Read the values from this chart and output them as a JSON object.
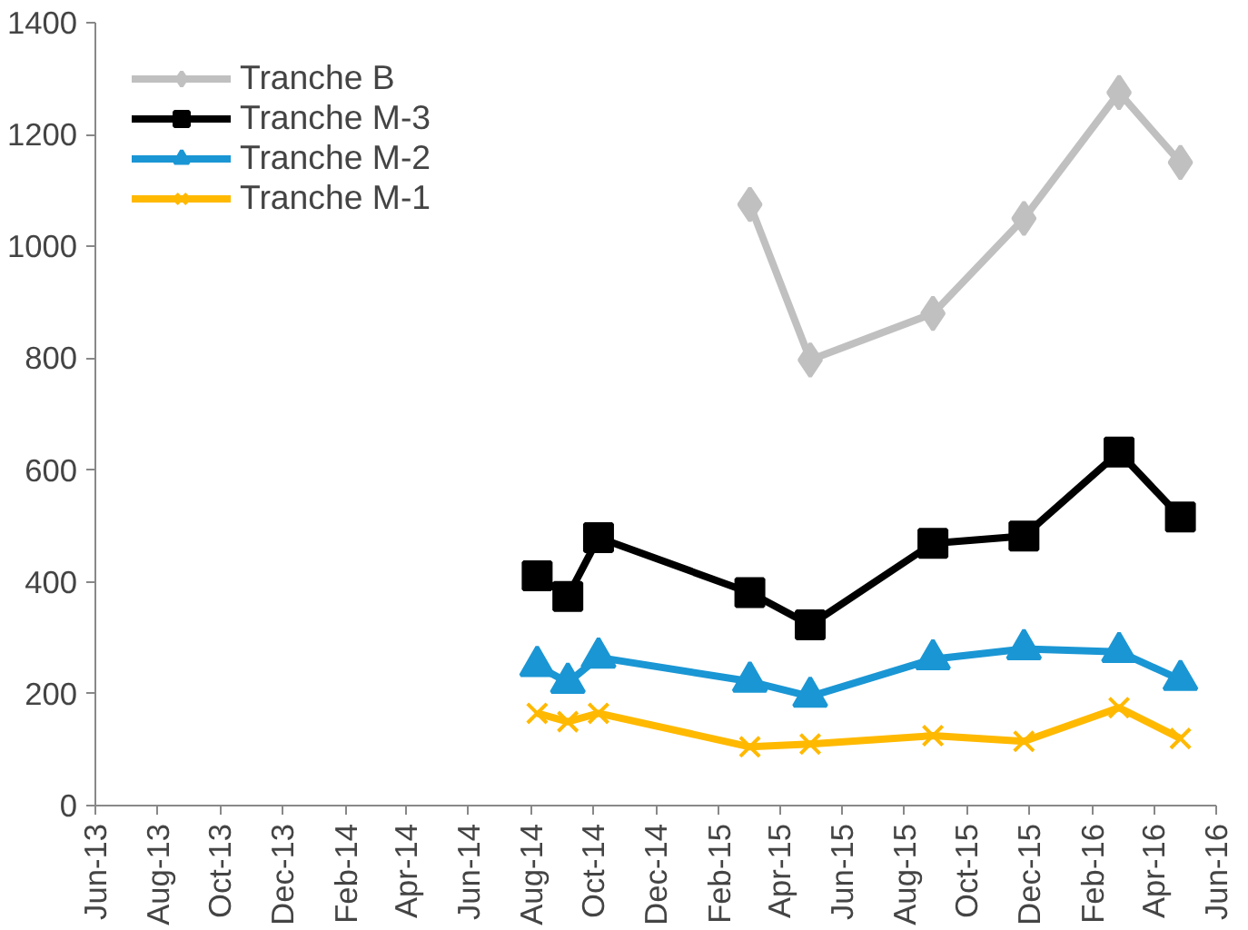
{
  "chart_data": {
    "type": "line",
    "x": [
      "2014-08-07",
      "2014-09-06",
      "2014-10-06",
      "2015-03-03",
      "2015-05-01",
      "2015-08-29",
      "2015-11-26",
      "2016-02-27",
      "2016-04-27"
    ],
    "series": [
      {
        "name": "Tranche B",
        "color": "#c0c0c0",
        "marker": "diamond",
        "values": [
          null,
          null,
          null,
          1075,
          797,
          880,
          1050,
          1275,
          1150
        ]
      },
      {
        "name": "Tranche M-3",
        "color": "#000000",
        "marker": "square",
        "values": [
          411,
          374,
          479,
          381,
          323,
          469,
          482,
          632,
          516
        ]
      },
      {
        "name": "Tranche M-2",
        "color": "#1a96d4",
        "marker": "triangle",
        "values": [
          250,
          220,
          265,
          222,
          195,
          262,
          280,
          275,
          225
        ]
      },
      {
        "name": "Tranche M-1",
        "color": "#ffb900",
        "marker": "cross",
        "values": [
          165,
          150,
          165,
          105,
          110,
          125,
          115,
          175,
          120
        ]
      }
    ],
    "ylim": [
      0,
      1400
    ],
    "yticks": [
      0,
      200,
      400,
      600,
      800,
      1000,
      1200,
      1400
    ],
    "xlim": [
      "2013-06",
      "2016-06"
    ],
    "xticks": [
      {
        "value": "2013-06",
        "label": "Jun-13"
      },
      {
        "value": "2013-08",
        "label": "Aug-13"
      },
      {
        "value": "2013-10",
        "label": "Oct-13"
      },
      {
        "value": "2013-12",
        "label": "Dec-13"
      },
      {
        "value": "2014-02",
        "label": "Feb-14"
      },
      {
        "value": "2014-04",
        "label": "Apr-14"
      },
      {
        "value": "2014-06",
        "label": "Jun-14"
      },
      {
        "value": "2014-08",
        "label": "Aug-14"
      },
      {
        "value": "2014-10",
        "label": "Oct-14"
      },
      {
        "value": "2014-12",
        "label": "Dec-14"
      },
      {
        "value": "2015-02",
        "label": "Feb-15"
      },
      {
        "value": "2015-04",
        "label": "Apr-15"
      },
      {
        "value": "2015-06",
        "label": "Jun-15"
      },
      {
        "value": "2015-08",
        "label": "Aug-15"
      },
      {
        "value": "2015-10",
        "label": "Oct-15"
      },
      {
        "value": "2015-12",
        "label": "Dec-15"
      },
      {
        "value": "2016-02",
        "label": "Feb-16"
      },
      {
        "value": "2016-04",
        "label": "Apr-16"
      },
      {
        "value": "2016-06",
        "label": "Jun-16"
      }
    ],
    "grid": false,
    "legend": "top left",
    "line_style": "solid"
  }
}
